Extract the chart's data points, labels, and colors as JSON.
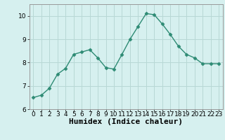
{
  "x": [
    0,
    1,
    2,
    3,
    4,
    5,
    6,
    7,
    8,
    9,
    10,
    11,
    12,
    13,
    14,
    15,
    16,
    17,
    18,
    19,
    20,
    21,
    22,
    23
  ],
  "y": [
    6.5,
    6.6,
    6.9,
    7.5,
    7.75,
    8.35,
    8.45,
    8.55,
    8.2,
    7.78,
    7.72,
    8.35,
    9.0,
    9.55,
    10.1,
    10.05,
    9.65,
    9.2,
    8.7,
    8.35,
    8.2,
    7.95,
    7.95,
    7.95
  ],
  "line_color": "#2e8b74",
  "marker": "D",
  "marker_size": 2.5,
  "bg_color": "#d6f0ef",
  "grid_color": "#b8d8d5",
  "xlabel": "Humidex (Indice chaleur)",
  "ylim": [
    6,
    10.5
  ],
  "xlim": [
    -0.5,
    23.5
  ],
  "yticks": [
    6,
    7,
    8,
    9,
    10
  ],
  "xticks": [
    0,
    1,
    2,
    3,
    4,
    5,
    6,
    7,
    8,
    9,
    10,
    11,
    12,
    13,
    14,
    15,
    16,
    17,
    18,
    19,
    20,
    21,
    22,
    23
  ],
  "tick_fontsize": 6.5,
  "xlabel_fontsize": 8,
  "linewidth": 1.0
}
